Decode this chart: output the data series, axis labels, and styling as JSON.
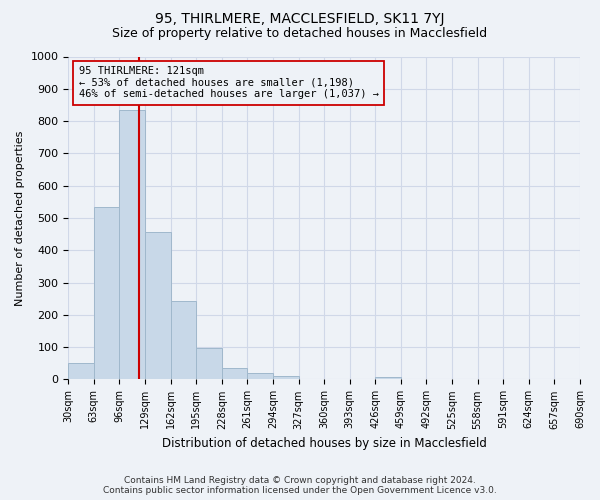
{
  "title": "95, THIRLMERE, MACCLESFIELD, SK11 7YJ",
  "subtitle": "Size of property relative to detached houses in Macclesfield",
  "xlabel": "Distribution of detached houses by size in Macclesfield",
  "ylabel": "Number of detached properties",
  "bar_edges": [
    30,
    63,
    96,
    129,
    162,
    195,
    228,
    261,
    294,
    327,
    360,
    393,
    426,
    459,
    492,
    525,
    558,
    591,
    624,
    657,
    690
  ],
  "bar_heights": [
    52,
    535,
    835,
    457,
    242,
    97,
    36,
    21,
    11,
    0,
    0,
    0,
    8,
    0,
    0,
    0,
    0,
    0,
    0,
    0
  ],
  "bar_color": "#c8d8e8",
  "bar_edgecolor": "#a0b8cc",
  "vline_x": 121,
  "vline_color": "#cc0000",
  "ylim": [
    0,
    1000
  ],
  "yticks": [
    0,
    100,
    200,
    300,
    400,
    500,
    600,
    700,
    800,
    900,
    1000
  ],
  "annotation_text": "95 THIRLMERE: 121sqm\n← 53% of detached houses are smaller (1,198)\n46% of semi-detached houses are larger (1,037) →",
  "annotation_box_edgecolor": "#cc0000",
  "grid_color": "#d0d8e8",
  "footer_line1": "Contains HM Land Registry data © Crown copyright and database right 2024.",
  "footer_line2": "Contains public sector information licensed under the Open Government Licence v3.0.",
  "background_color": "#eef2f7",
  "plot_bg_color": "#eef2f7",
  "title_fontsize": 10,
  "subtitle_fontsize": 9
}
